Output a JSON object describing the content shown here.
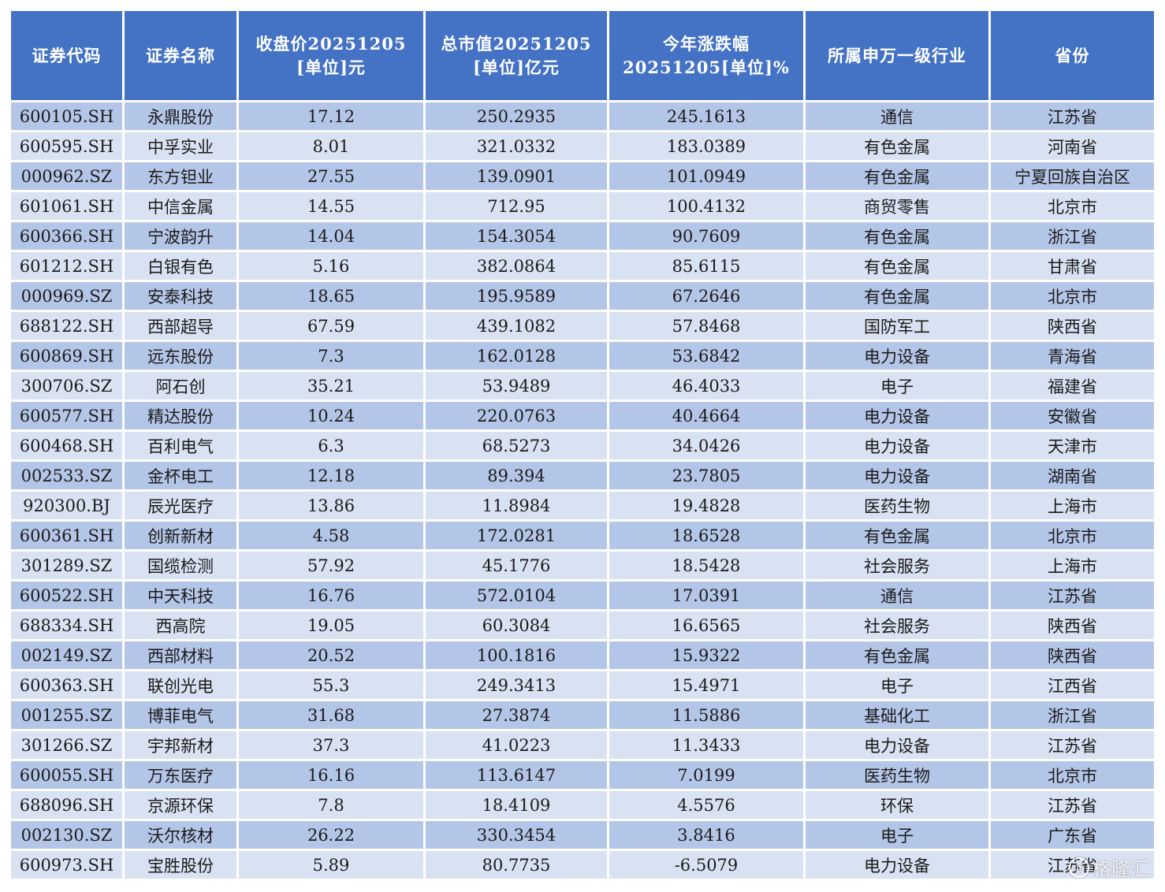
{
  "table": {
    "headers": [
      [
        "证券代码"
      ],
      [
        "证券名称"
      ],
      [
        "收盘价20251205",
        "[单位]元"
      ],
      [
        "总市值20251205",
        "[单位]亿元"
      ],
      [
        "今年涨跌幅",
        "20251205[单位]%"
      ],
      [
        "所属申万一级行业"
      ],
      [
        "省份"
      ]
    ],
    "rows": [
      [
        "600105.SH",
        "永鼎股份",
        "17.12",
        "250.2935",
        "245.1613",
        "通信",
        "江苏省"
      ],
      [
        "600595.SH",
        "中孚实业",
        "8.01",
        "321.0332",
        "183.0389",
        "有色金属",
        "河南省"
      ],
      [
        "000962.SZ",
        "东方钽业",
        "27.55",
        "139.0901",
        "101.0949",
        "有色金属",
        "宁夏回族自治区"
      ],
      [
        "601061.SH",
        "中信金属",
        "14.55",
        "712.95",
        "100.4132",
        "商贸零售",
        "北京市"
      ],
      [
        "600366.SH",
        "宁波韵升",
        "14.04",
        "154.3054",
        "90.7609",
        "有色金属",
        "浙江省"
      ],
      [
        "601212.SH",
        "白银有色",
        "5.16",
        "382.0864",
        "85.6115",
        "有色金属",
        "甘肃省"
      ],
      [
        "000969.SZ",
        "安泰科技",
        "18.65",
        "195.9589",
        "67.2646",
        "有色金属",
        "北京市"
      ],
      [
        "688122.SH",
        "西部超导",
        "67.59",
        "439.1082",
        "57.8468",
        "国防军工",
        "陕西省"
      ],
      [
        "600869.SH",
        "远东股份",
        "7.3",
        "162.0128",
        "53.6842",
        "电力设备",
        "青海省"
      ],
      [
        "300706.SZ",
        "阿石创",
        "35.21",
        "53.9489",
        "46.4033",
        "电子",
        "福建省"
      ],
      [
        "600577.SH",
        "精达股份",
        "10.24",
        "220.0763",
        "40.4664",
        "电力设备",
        "安徽省"
      ],
      [
        "600468.SH",
        "百利电气",
        "6.3",
        "68.5273",
        "34.0426",
        "电力设备",
        "天津市"
      ],
      [
        "002533.SZ",
        "金杯电工",
        "12.18",
        "89.394",
        "23.7805",
        "电力设备",
        "湖南省"
      ],
      [
        "920300.BJ",
        "辰光医疗",
        "13.86",
        "11.8984",
        "19.4828",
        "医药生物",
        "上海市"
      ],
      [
        "600361.SH",
        "创新新材",
        "4.58",
        "172.0281",
        "18.6528",
        "有色金属",
        "北京市"
      ],
      [
        "301289.SZ",
        "国缆检测",
        "57.92",
        "45.1776",
        "18.5428",
        "社会服务",
        "上海市"
      ],
      [
        "600522.SH",
        "中天科技",
        "16.76",
        "572.0104",
        "17.0391",
        "通信",
        "江苏省"
      ],
      [
        "688334.SH",
        "西高院",
        "19.05",
        "60.3084",
        "16.6565",
        "社会服务",
        "陕西省"
      ],
      [
        "002149.SZ",
        "西部材料",
        "20.52",
        "100.1816",
        "15.9322",
        "有色金属",
        "陕西省"
      ],
      [
        "600363.SH",
        "联创光电",
        "55.3",
        "249.3413",
        "15.4971",
        "电子",
        "江西省"
      ],
      [
        "001255.SZ",
        "博菲电气",
        "31.68",
        "27.3874",
        "11.5886",
        "基础化工",
        "浙江省"
      ],
      [
        "301266.SZ",
        "宇邦新材",
        "37.3",
        "41.0223",
        "11.3433",
        "电力设备",
        "江苏省"
      ],
      [
        "600055.SH",
        "万东医疗",
        "16.16",
        "113.6147",
        "7.0199",
        "医药生物",
        "北京市"
      ],
      [
        "688096.SH",
        "京源环保",
        "7.8",
        "18.4109",
        "4.5576",
        "环保",
        "江苏省"
      ],
      [
        "002130.SZ",
        "沃尔核材",
        "26.22",
        "330.3454",
        "3.8416",
        "电子",
        "广东省"
      ],
      [
        "600973.SH",
        "宝胜股份",
        "5.89",
        "80.7735",
        "-6.5079",
        "电力设备",
        "江苏省"
      ]
    ]
  },
  "watermark": {
    "text": "格隆汇",
    "icon": "gelonghui-logo-icon"
  },
  "colors": {
    "header_bg": "#4472c4",
    "header_text": "#ffffff",
    "row_odd_bg": "#b4c6e7",
    "row_even_bg": "#d9e2f3"
  }
}
